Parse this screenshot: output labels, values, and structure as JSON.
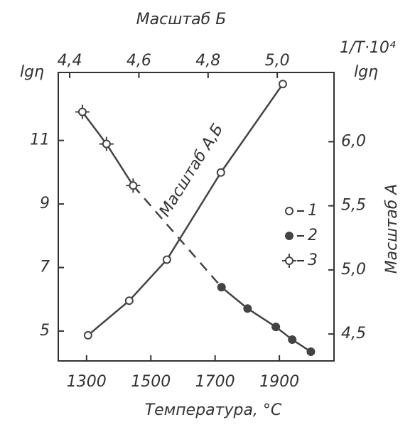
{
  "chart_data": {
    "type": "line",
    "x_label": "Температура, °C",
    "y_label": "lgη",
    "y2_label": "lgη",
    "y2_title": "Масштаб А",
    "x2_label": "1/T·10⁴",
    "x2_title": "Масштаб Б",
    "annotation": "Масштаб А,Б",
    "xlim": [
      1212,
      2070
    ],
    "xticks": [
      1300,
      1500,
      1700,
      1900
    ],
    "ylim": [
      4.06,
      13.14
    ],
    "yticks": [
      5,
      7,
      9,
      11
    ],
    "x2lim": [
      4.367,
      5.164
    ],
    "x2ticks": [
      {
        "value": 4.4,
        "label": "4,4"
      },
      {
        "value": 4.6,
        "label": "4,6"
      },
      {
        "value": 4.8,
        "label": "4,8"
      },
      {
        "value": 5.0,
        "label": "5,0"
      }
    ],
    "y2lim": [
      4.29,
      6.54
    ],
    "y2ticks": [
      {
        "value": 4.5,
        "label": "4,5"
      },
      {
        "value": 5.0,
        "label": "5,0"
      },
      {
        "value": 5.5,
        "label": "5,5"
      },
      {
        "value": 6.0,
        "label": "6,0"
      }
    ],
    "series": [
      {
        "name": "1",
        "color": "#444444",
        "marker": "open",
        "axis": "y2",
        "xaxis": "x2",
        "x": [
          4.453,
          4.572,
          4.681,
          4.837,
          5.016
        ],
        "values": [
          4.49,
          4.76,
          5.08,
          5.76,
          6.45
        ]
      },
      {
        "name": "2",
        "color": "#444444",
        "marker": "filled",
        "x": [
          1720,
          1801,
          1889,
          1940,
          1998
        ],
        "values": [
          6.38,
          5.71,
          5.13,
          4.73,
          4.35
        ]
      },
      {
        "name": "3",
        "color": "#444444",
        "marker": "cross",
        "x": [
          1287,
          1362,
          1445
        ],
        "values": [
          11.9,
          10.89,
          9.58
        ]
      }
    ]
  }
}
